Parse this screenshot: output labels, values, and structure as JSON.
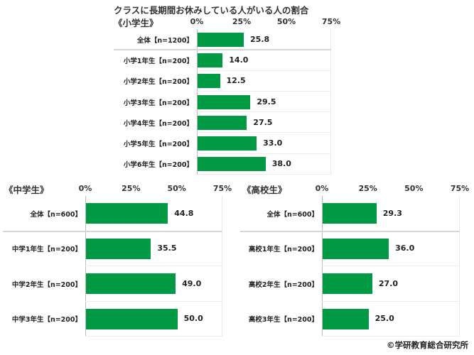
{
  "title": "クラスに長期間お休みしている人がいる人の割合",
  "copyright": "©学研教育総合研究所",
  "colors": {
    "bar": "#009944",
    "grid": "#ededed",
    "axis": "#bdbdbd"
  },
  "chart_data": [
    {
      "type": "bar",
      "orientation": "horizontal",
      "title": "《小学生》",
      "categories": [
        "全体【n=1200】",
        "小学1年生【n=200】",
        "小学2年生【n=200】",
        "小学3年生【n=200】",
        "小学4年生【n=200】",
        "小学5年生【n=200】",
        "小学6年生【n=200】"
      ],
      "values": [
        25.8,
        14.0,
        12.5,
        29.5,
        27.5,
        33.0,
        38.0
      ],
      "value_labels": [
        "25.8",
        "14.0",
        "12.5",
        "29.5",
        "27.5",
        "33.0",
        "38.0"
      ],
      "xticks": [
        "0%",
        "25%",
        "50%",
        "75%"
      ],
      "xlim": [
        0,
        75
      ],
      "xlabel": "",
      "ylabel": ""
    },
    {
      "type": "bar",
      "orientation": "horizontal",
      "title": "《中学生》",
      "categories": [
        "全体【n=600】",
        "中学1年生【n=200】",
        "中学2年生【n=200】",
        "中学3年生【n=200】"
      ],
      "values": [
        44.8,
        35.5,
        49.0,
        50.0
      ],
      "value_labels": [
        "44.8",
        "35.5",
        "49.0",
        "50.0"
      ],
      "xticks": [
        "0%",
        "25%",
        "50%",
        "75%"
      ],
      "xlim": [
        0,
        75
      ],
      "xlabel": "",
      "ylabel": ""
    },
    {
      "type": "bar",
      "orientation": "horizontal",
      "title": "《高校生》",
      "categories": [
        "全体【n=600】",
        "高校1年生【n=200】",
        "高校2年生【n=200】",
        "高校3年生【n=200】"
      ],
      "values": [
        29.3,
        36.0,
        27.0,
        25.0
      ],
      "value_labels": [
        "29.3",
        "36.0",
        "27.0",
        "25.0"
      ],
      "xticks": [
        "0%",
        "25%",
        "50%",
        "75%"
      ],
      "xlim": [
        0,
        75
      ],
      "xlabel": "",
      "ylabel": ""
    }
  ]
}
